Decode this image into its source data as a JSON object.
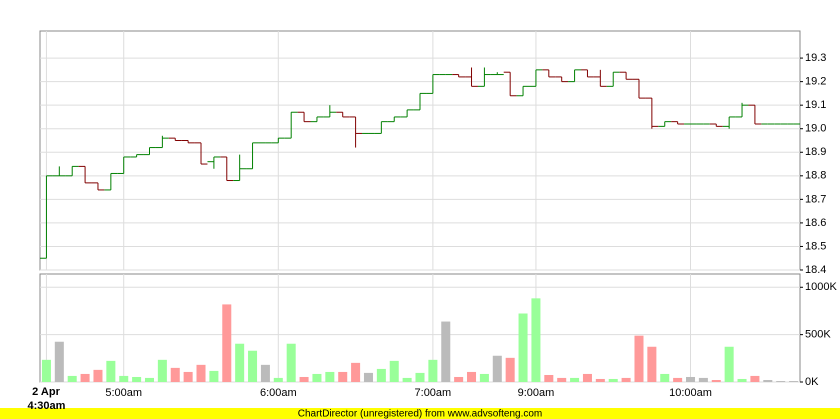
{
  "chart_data": {
    "type": "ohlc",
    "date_label": "2 Apr",
    "categories": [
      "4:30am",
      null,
      null,
      null,
      null,
      null,
      "5:00am",
      null,
      null,
      null,
      null,
      null,
      null,
      null,
      null,
      null,
      null,
      null,
      "6:00am",
      null,
      null,
      null,
      null,
      null,
      null,
      null,
      null,
      null,
      null,
      null,
      "7:00am",
      null,
      null,
      null,
      null,
      null,
      null,
      null,
      "9:00am",
      null,
      null,
      null,
      null,
      null,
      null,
      null,
      null,
      null,
      null,
      null,
      "10:00am",
      null,
      null,
      null,
      null,
      null,
      null,
      null,
      null
    ],
    "open": [
      18.45,
      18.8,
      18.8,
      18.84,
      18.77,
      18.74,
      18.81,
      18.88,
      18.89,
      18.92,
      18.96,
      18.95,
      18.94,
      18.86,
      18.88,
      18.78,
      18.83,
      18.94,
      18.94,
      18.96,
      19.07,
      19.03,
      19.05,
      19.07,
      19.05,
      18.98,
      18.98,
      19.03,
      19.05,
      19.08,
      19.15,
      19.23,
      19.23,
      19.22,
      19.18,
      19.23,
      19.24,
      19.14,
      19.18,
      19.25,
      19.22,
      19.2,
      19.25,
      19.22,
      19.18,
      19.24,
      19.21,
      19.13,
      19.01,
      19.03,
      19.02,
      19.02,
      19.02,
      19.01,
      19.05,
      19.1,
      19.02,
      19.02,
      19.02
    ],
    "high": [
      18.8,
      18.84,
      18.84,
      18.84,
      18.77,
      18.81,
      18.88,
      18.89,
      18.92,
      18.97,
      18.96,
      18.95,
      18.94,
      18.88,
      18.88,
      18.89,
      18.94,
      18.94,
      18.96,
      19.07,
      19.07,
      19.05,
      19.1,
      19.07,
      19.05,
      18.98,
      19.03,
      19.05,
      19.08,
      19.15,
      19.23,
      19.23,
      19.23,
      19.26,
      19.26,
      19.24,
      19.24,
      19.18,
      19.25,
      19.25,
      19.22,
      19.25,
      19.25,
      19.25,
      19.24,
      19.24,
      19.21,
      19.13,
      19.03,
      19.03,
      19.02,
      19.02,
      19.02,
      19.05,
      19.11,
      19.1,
      19.02,
      19.02,
      19.02
    ],
    "low": [
      18.45,
      18.8,
      18.8,
      18.77,
      18.74,
      18.74,
      18.81,
      18.88,
      18.89,
      18.92,
      18.95,
      18.94,
      18.85,
      18.83,
      18.78,
      18.78,
      18.83,
      18.94,
      18.94,
      18.96,
      19.03,
      19.03,
      19.05,
      19.05,
      18.92,
      18.98,
      18.98,
      19.03,
      19.05,
      19.08,
      19.15,
      19.23,
      19.22,
      19.18,
      19.18,
      19.23,
      19.14,
      19.14,
      19.18,
      19.22,
      19.2,
      19.2,
      19.22,
      19.18,
      19.18,
      19.21,
      19.13,
      19.0,
      19.01,
      19.02,
      19.02,
      19.02,
      19.01,
      19.0,
      19.05,
      19.02,
      19.02,
      19.02,
      19.02
    ],
    "close": [
      18.8,
      18.8,
      18.84,
      18.77,
      18.74,
      18.81,
      18.88,
      18.89,
      18.92,
      18.96,
      18.95,
      18.94,
      18.85,
      18.88,
      18.78,
      18.83,
      18.94,
      18.94,
      18.96,
      19.07,
      19.03,
      19.05,
      19.07,
      19.05,
      18.98,
      18.98,
      19.03,
      19.05,
      19.08,
      19.15,
      19.23,
      19.23,
      19.22,
      19.18,
      19.23,
      19.23,
      19.14,
      19.18,
      19.25,
      19.22,
      19.2,
      19.25,
      19.22,
      19.18,
      19.24,
      19.21,
      19.13,
      19.01,
      19.03,
      19.02,
      19.02,
      19.02,
      19.01,
      19.05,
      19.1,
      19.02,
      19.02,
      19.02,
      19.02
    ],
    "volume": [
      234000,
      425000,
      64000,
      85000,
      128000,
      223000,
      64000,
      53000,
      43000,
      234000,
      149000,
      106000,
      181000,
      117000,
      819000,
      404000,
      330000,
      181000,
      43000,
      404000,
      53000,
      85000,
      106000,
      106000,
      202000,
      96000,
      138000,
      223000,
      43000,
      96000,
      234000,
      638000,
      53000,
      106000,
      85000,
      277000,
      255000,
      723000,
      883000,
      74000,
      43000,
      43000,
      85000,
      32000,
      32000,
      43000,
      489000,
      372000,
      85000,
      43000,
      53000,
      43000,
      21000,
      372000,
      32000,
      64000,
      21000,
      10000,
      10000
    ],
    "ylim": [
      18.4,
      19.415
    ],
    "yticks": [
      18.4,
      18.5,
      18.6,
      18.7,
      18.8,
      18.9,
      {
        "value": 19.0,
        "label": "19.0"
      },
      19.1,
      19.2,
      19.3
    ],
    "volume_ylim": [
      0,
      1140000
    ],
    "volume_yticks": [
      {
        "value": 0,
        "label": "0K"
      },
      {
        "value": 500000,
        "label": "500K"
      },
      {
        "value": 1000000,
        "label": "1000K"
      }
    ],
    "up_color": "#008000",
    "down_color": "#800000",
    "volume_up_color": "#99ff99",
    "volume_down_color": "#ff9999",
    "volume_flat_color": "#bbbbbb",
    "grid": true
  },
  "footer": "ChartDirector (unregistered) from www.advsofteng.com"
}
